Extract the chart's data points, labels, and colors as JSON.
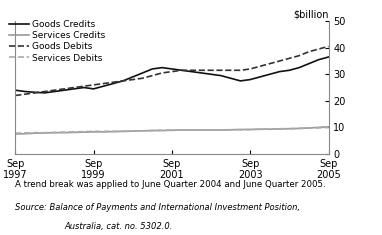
{
  "ylabel": "$billion",
  "ylim": [
    0,
    50
  ],
  "yticks": [
    0,
    10,
    20,
    30,
    40,
    50
  ],
  "xtick_labels": [
    "Sep\n1997",
    "Sep\n1999",
    "Sep\n2001",
    "Sep\n2003",
    "Sep\n2005"
  ],
  "xtick_positions": [
    0,
    8,
    16,
    24,
    32
  ],
  "note1": "A trend break was applied to June Quarter 2004 and June Quarter 2005.",
  "note2": "Source: Balance of Payments and International Investment Position,",
  "note3": "Australia, cat. no. 5302.0.",
  "goods_credits": {
    "x": [
      0,
      1,
      2,
      3,
      4,
      5,
      6,
      7,
      8,
      9,
      10,
      11,
      12,
      13,
      14,
      15,
      16,
      17,
      18,
      19,
      20,
      21,
      22,
      23,
      24,
      25,
      26,
      27,
      28,
      29,
      30,
      31,
      32
    ],
    "y": [
      24.0,
      23.5,
      23.2,
      23.0,
      23.5,
      24.0,
      24.5,
      25.0,
      24.5,
      25.5,
      26.5,
      27.5,
      29.0,
      30.5,
      32.0,
      32.5,
      32.0,
      31.5,
      31.0,
      30.5,
      30.0,
      29.5,
      28.5,
      27.5,
      28.0,
      29.0,
      30.0,
      31.0,
      31.5,
      32.5,
      34.0,
      35.5,
      36.5
    ],
    "color": "#111111",
    "linestyle": "solid",
    "linewidth": 1.2,
    "label": "Goods Credits"
  },
  "services_credits": {
    "x": [
      0,
      1,
      2,
      3,
      4,
      5,
      6,
      7,
      8,
      9,
      10,
      11,
      12,
      13,
      14,
      15,
      16,
      17,
      18,
      19,
      20,
      21,
      22,
      23,
      24,
      25,
      26,
      27,
      28,
      29,
      30,
      31,
      32
    ],
    "y": [
      7.5,
      7.6,
      7.8,
      7.9,
      8.0,
      8.0,
      8.1,
      8.2,
      8.3,
      8.3,
      8.4,
      8.5,
      8.6,
      8.7,
      8.8,
      8.8,
      8.9,
      9.0,
      9.0,
      9.0,
      9.0,
      9.0,
      9.1,
      9.2,
      9.2,
      9.3,
      9.3,
      9.4,
      9.5,
      9.6,
      9.8,
      10.0,
      10.2
    ],
    "color": "#999999",
    "linestyle": "solid",
    "linewidth": 1.2,
    "label": "Services Credits"
  },
  "goods_debits": {
    "x": [
      0,
      1,
      2,
      3,
      4,
      5,
      6,
      7,
      8,
      9,
      10,
      11,
      12,
      13,
      14,
      15,
      16,
      17,
      18,
      19,
      20,
      21,
      22,
      23,
      24,
      25,
      26,
      27,
      28,
      29,
      30,
      31,
      32
    ],
    "y": [
      22.0,
      22.5,
      23.0,
      23.5,
      24.0,
      24.5,
      25.0,
      25.5,
      26.0,
      26.5,
      27.0,
      27.5,
      28.0,
      28.5,
      29.5,
      30.5,
      31.0,
      31.5,
      31.5,
      31.5,
      31.5,
      31.5,
      31.5,
      31.5,
      32.0,
      33.0,
      34.0,
      35.0,
      36.0,
      37.0,
      38.5,
      39.5,
      40.5
    ],
    "color": "#333333",
    "linestyle": "dashed",
    "linewidth": 1.2,
    "label": "Goods Debits"
  },
  "services_debits": {
    "x": [
      0,
      1,
      2,
      3,
      4,
      5,
      6,
      7,
      8,
      9,
      10,
      11,
      12,
      13,
      14,
      15,
      16,
      17,
      18,
      19,
      20,
      21,
      22,
      23,
      24,
      25,
      26,
      27,
      28,
      29,
      30,
      31,
      32
    ],
    "y": [
      7.8,
      7.9,
      8.0,
      8.0,
      8.1,
      8.2,
      8.3,
      8.4,
      8.5,
      8.5,
      8.5,
      8.5,
      8.6,
      8.7,
      8.8,
      8.9,
      9.0,
      9.0,
      9.0,
      9.0,
      9.0,
      9.0,
      9.1,
      9.1,
      9.2,
      9.3,
      9.4,
      9.5,
      9.5,
      9.6,
      9.7,
      9.8,
      10.0
    ],
    "color": "#aaaaaa",
    "linestyle": "dashed",
    "linewidth": 1.2,
    "label": "Services Debits"
  },
  "bg_color": "#ffffff",
  "legend_fontsize": 6.5,
  "tick_fontsize": 7,
  "note_fontsize": 6.2,
  "note_fontsize2": 6.0
}
